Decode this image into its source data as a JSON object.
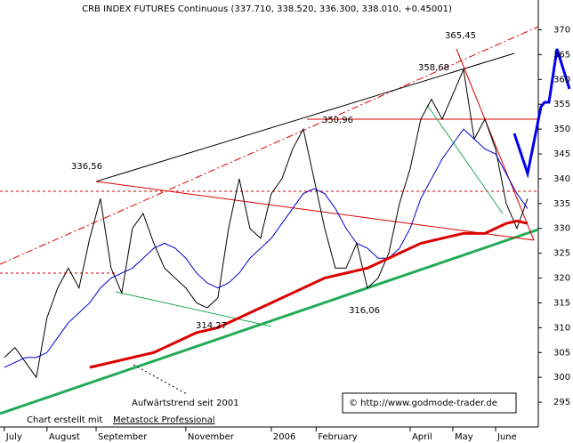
{
  "chart_data": {
    "type": "line",
    "title": "CRB INDEX FUTURES Continuous (337.710, 338.520, 336.300, 338.010, +0.45001)",
    "x": [
      0,
      1,
      2,
      3,
      4,
      5,
      6,
      7,
      8,
      9,
      10,
      11,
      12,
      13,
      14,
      15,
      16,
      17,
      18,
      19,
      20,
      21,
      22,
      23,
      24,
      25,
      26,
      27,
      28,
      29,
      30,
      31,
      32,
      33,
      34,
      35,
      36,
      37,
      38,
      39,
      40,
      41,
      42,
      43,
      44,
      45,
      46,
      47,
      48,
      49
    ],
    "series": [
      {
        "color": "#000000",
        "values": [
          304,
          306,
          303,
          300,
          312,
          318,
          322,
          318,
          328,
          336,
          322,
          317,
          330,
          333,
          327,
          322,
          320,
          318,
          315,
          314,
          316,
          330,
          340,
          330,
          328,
          337,
          340,
          346,
          350,
          340,
          330,
          322,
          322,
          327,
          318,
          320,
          325,
          335,
          342,
          352,
          356,
          352,
          357,
          362,
          348,
          352,
          346,
          335,
          330,
          336
        ]
      },
      {
        "color": "#0000cc",
        "values": [
          302,
          303,
          304,
          304,
          305,
          308,
          311,
          313,
          315,
          318,
          320,
          321,
          322,
          324,
          326,
          327,
          326,
          324,
          321,
          319,
          318,
          319,
          321,
          324,
          326,
          328,
          331,
          334,
          337,
          338,
          337,
          334,
          330,
          327,
          326,
          324,
          324,
          326,
          330,
          336,
          340,
          344,
          347,
          350,
          348,
          346,
          345,
          341,
          337,
          334
        ]
      },
      {
        "color": "#dd0000",
        "values": [
          null,
          null,
          null,
          null,
          null,
          null,
          null,
          null,
          302,
          302.5,
          303,
          303.5,
          304,
          304.5,
          305,
          306,
          307,
          308,
          309,
          309.5,
          310,
          311,
          312,
          313,
          314,
          315,
          316,
          317,
          318,
          319,
          320,
          320.5,
          321,
          321.5,
          322,
          323,
          324,
          325,
          326,
          327,
          327.5,
          328,
          328.5,
          329,
          329,
          329,
          330,
          331,
          331.5,
          331
        ]
      }
    ],
    "xlim": [
      -0.4,
      50
    ],
    "xticks": [
      {
        "value": 0,
        "label": "July"
      },
      {
        "value": 4,
        "label": "August"
      },
      {
        "value": 8.6,
        "label": "September"
      },
      {
        "value": 17,
        "label": "November"
      },
      {
        "value": 25,
        "label": "2006"
      },
      {
        "value": 29.2,
        "label": "February"
      },
      {
        "value": 38,
        "label": "April"
      },
      {
        "value": 42,
        "label": "May"
      },
      {
        "value": 46,
        "label": "June"
      }
    ],
    "ylim": [
      290,
      376
    ],
    "yticks": [
      295,
      300,
      305,
      310,
      315,
      320,
      325,
      330,
      335,
      340,
      345,
      350,
      355,
      360,
      365,
      370
    ],
    "annotations": [
      "365,45",
      "358,68",
      "350,96",
      "336,56",
      "316,06",
      "314,27",
      "Aufwärtstrend seit 2001"
    ],
    "footer": {
      "prefix": "Chart erstellt mit",
      "link": "Metastock Professional",
      "copyright": "© http://www.godmode-trader.de"
    }
  }
}
